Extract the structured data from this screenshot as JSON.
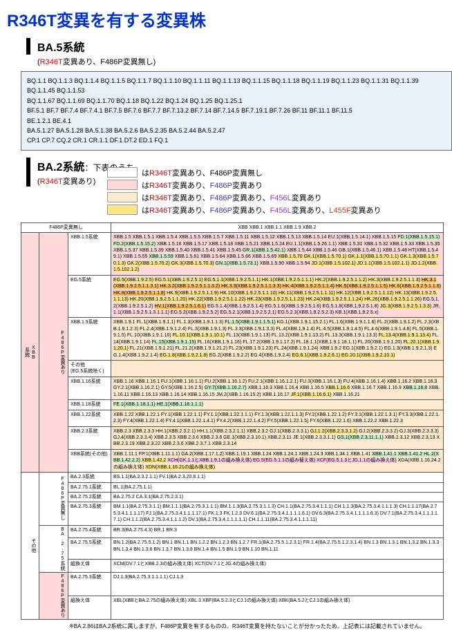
{
  "title": "R346T変異を有する変異株",
  "ba5": {
    "label": "BA.5系統",
    "sub": "(R346T変異あり、F486P変異無し)",
    "lines": [
      "BQ.1.1  BQ.1.1.3  BQ.1.1.4  BQ.1.1.5  BQ.1.1.7  BQ.1.1.10  BQ.1.1.11  BQ.1.1.13  BQ.1.1.15  BQ.1.1.18  BQ.1.1.19 BQ.1.1.23  BQ.1.1.31  BQ.1.1.39  BQ.1.1.45  BQ.1.1.53",
      "BQ.1.1.67  BQ.1.1.69  BQ.1.1.70  BQ.1.18  BQ.1.22  BQ.1.24  BQ.1.25  BQ.1.25.1",
      "BF.5.1  BF.7  BF.7.4  BF.7.4.1  BF.7.5  BF.7.6  BF.7.7  BF.7.13.2 BF.7.14  BF.7.14.5  BF.7.19.1  BF.7.26  BF.11  BF.11.1  BF.11.5",
      "BE.1.2.1  BE.4.1",
      "BA.5.1.27  BA.5.1.28  BA.5.1.38  BA.5.2.6  BA.5.2.35  BA.5.2.44  BA.5.2.47",
      "CP.1  CP.7  CQ.2  CR.1  CR.1.1  DF.1  DT.2  ED.1  FQ.1"
    ]
  },
  "ba2": {
    "label": "BA.2系統",
    "labelsuffix": "：下表のうち",
    "sub": "(R346T変異あり)",
    "legend": [
      {
        "color": "#ffffff",
        "text": "はR346T変異あり、F486P変異無し",
        "parts": [
          "は",
          "R346T",
          "変異あり、F486P変異無し"
        ]
      },
      {
        "color": "#ffd9d9",
        "text": "はR346T変異あり、F486P変異あり",
        "parts": [
          "は",
          "R346T",
          "変異あり、",
          "F486P",
          "変異あり"
        ]
      },
      {
        "color": "#ffead0",
        "text": "はR346T変異あり、F486P変異あり、F456L変異あり",
        "parts": [
          "は",
          "R346T",
          "変異あり、",
          "F486P",
          "変異あり、",
          "F456L",
          "変異あり"
        ]
      },
      {
        "color": "#ffe680",
        "text": "はR346T変異あり、F486P変異あり、F456L変異あり、L455F変異あり",
        "parts": [
          "は",
          "R346T",
          "変異あり、",
          "F486P",
          "変異あり、",
          "F456L",
          "変異あり、",
          "L455F",
          "変異あり"
        ]
      }
    ]
  },
  "tbl": {
    "headrow": [
      "F486P変異無し",
      "XBB  XBB.1  XBB.1.1  XBB.1.9  XBB.2"
    ],
    "rows": [
      {
        "grp": "XBB\n系統",
        "grpbg": "#ffd9d9",
        "sub": "F486P変異あり",
        "sub_bg": "#ffd9d9",
        "lab": "XBB.1.5系統",
        "content": "XBB.1.5 XBB.1.5.1 XBB.1.5.4 XBB.1.5.5 XBB.1.5.7 XBB.1.5.11 XBB.1.5.12 XBB.1.5.13 XBB.1.5.14 EU.1(XBB.1.5.14.1) XBB.1.5.15 <span class='green-hl'>FD.1(XBB.1.5.15.1) FD.2(XBB.1.5.15.2)</span> XBB.1.5.16 XBB.1.5.17 XBB.1.5.18 XBB.1.5.21 XBB.1.5.24 EU.1.1(XBB.1.5.26.1.1) XBB.1.5.31 XBB.1.5.32 XBB.1.5.33 XBB.1.5.35 XBB.1.5.37 XBB.1.5.39 XBB.1.5.40 XBB.1.5.41 XBB.1.5.45 <span class='green-hl'>GR.1(XBB.1.5.42.1)</span> XBB.1.5.44 XBB.1.5.46 GB.1(XBB.1.5.46.1) XBB.1.5.48 HT(XBB.1.5.49.1) XBB.1.5.55 <span class='green-hl'>XBB.1.5.59</span> XBB.1.5.61 XBB.1.5.64 XBB.1.5.66 XBB.1.5.69 <span class='yellow-hl'>XBB.1.5.70 GK.1(XBB.1.5.70.1) GK.1.1(XBB.1.5.70.1.1) GK.1.3(XBB.1.5.70.1.3) GK.2(XBB.1.5.70.2) GK.3(XBB.1.5.70.3)</span> <span class='green-hl'>GN.1(XBB.1.5.73.1)</span> XBB.1.5.90 XBB.1.5.94 <span class='yellow-hl'>JD.1(XBB.1.5.102.1) JD.1.1(XBB.1.5.102.1.1) JD.1.2(XBB.1.5.102.1.2)</span>"
      },
      {
        "lab": "EG.5系統",
        "content": "<span class='yellow-hl'>EG.5(XBB.1.9.2.5) EG.5.1(XBB.1.9.2.5.1) EG.5.1.1(XBB.1.9.2.5.1.1) HK.1(XBB.1.9.2.5.1.1.1) HK.2(XBB.1.9.2.5.1.1.2) HK.3(XBB.1.9.2.5.1.1.3)</span> <span class='orange-hl'>HK.3.1(XBB.1.9.2.5.1.1.3.1) HK.3.2(XBB.1.9.2.5.1.1.3.2) HK.3.3(XBB.1.9.2.5.1.1.3.3) HK.4(XBB.1.9.2.5.1.1.4) HK.5(XBB.1.9.2.5.1.1.5) HK.6(XBB.1.9.2.5.1.1.6) HK.8(XBB.1.9.2.5.1.1.8)</span> <span class='yellow-hl'>HK.9(XBB.1.9.2.5.1.1.9) HK.10(XBB.1.9.2.5.1.1.10) HK.11(XBB.1.9.2.5.1.1.11) HK.12(XBB.1.9.2.5.1.1.12) HK.13(XBB.1.9.2.5.1.1.13) HK.20(XBB.1.9.2.5.1.1.20) HK.22(XBB.1.9.2.5.1.1.22) HK.23(XBB.1.9.2.5.1.1.23) HK.24(XBB.1.9.2.5.1.1.24) HK.26(XBB.1.9.2.5.1.1.26)</span> EG.5.1.2(XBB.1.9.2.5.1.2) <span class='orange-hl'>HV.1(XBB.1.9.2.5.1.6.1)</span> EG.5.1.4(XBB.1.9.2.5.1.4) EG.5.1.6(XBB.1.9.2.5.1.6) EG.5.1.8(XBB.1.9.2.5.1.8) <span class='yellow-hl'>JG.3(XBB.1.9.2.5.1.3.3)</span> JR.1.1(XBB.1.9.2.5.1.3.1.1.1) EG.5.2(XBB.1.9.2.5.2) EG.5.2.1(XBB.1.9.2.5.2.1) EG.5.2.3(XBB.1.9.2.5.2.3) KB.1(XBB.1.9.2.5.x)"
      },
      {
        "lab": "XBB.1.9系統",
        "content": "XBB.1.9.1 FL.1(XBB.1.9.1.1) FL.1.3(XBB.1.9.1.1.3) <span class='green-hl'>FL.1.5(XBB.1.9.1.1.5.1)</span> KG.1(XBB.1.9.1.15.2.1) FL.1.6(XBB.1.9.1.1.6) FL.2(XBB.1.9.1.2) FL.2.3(XBB.1.9.1.2.3) FL.2.4(XBB.1.9.1.2.4) FL.3(XBB.1.9.1.3) FL.3.3(XBB.1.9.1.3.3) FL.4(XBB.1.9.1.4) FL.4.5(XBB.1.9.1.4.5) FL.4.6(XBB.1.9.1.4.6) FL.5(XBB.1.9.1.5) FL.10(XBB.1.9.1.10) <span class='yellow-hl'>FL.10.1(XBB.1.9.1.10.1)</span> FL.13(XBB.1.9.1.13) FL.13.2(XBB.1.9.1.13.2) FL.13.3(XBB.1.9.1.13.3) <span class='yellow-hl'>FL.13.4(XBB.1.9.1.13.4)</span> FL.14(XBB.1.9.1.14) <span class='green-hl'>FL.15(XBB.1.9.1.15)</span> FL.16(XBB.1.9.1.16) FL.17.2(XBB.1.9.1.17.2) FL.18.1.1(XBB.1.9.1.18.1.1) FL.20(XBB.1.9.1.20) <span class='yellow-hl'>FL.20.1(XBB.1.9.1.20.1)</span> FL.21(XBB.1.9.1.21) FL.21.2(XBB.1.9.1.21.2) FL.23(XBB.1.9.1.23) FL.24(XBB.1.9.1.24) XBB.1.9.2 EG.1(XBB.1.9.2.1) EG.1.3(XBB.1.9.2.1.3) EG.1.4(XBB.1.9.2.1.4) <span class='yellow-hl'>EG.1.8(XBB.1.9.2.1.8)</span> EG.2(XBB.1.9.2.2) EG.4(XBB.1.9.2.4) <span class='yellow-hl'>EG.6.1(XBB.1.9.2.6.1) EG.10.1(XBB.1.9.2.10.1)</span>"
      },
      {
        "lab": "その他\n(EG.5系統除く)",
        "content": ""
      },
      {
        "lab": "XBB.1.16系統",
        "content": "XBB.1.16 XBB.1.16.1 FU.1(XBB.1.16.1.1) FU.2(XBB.1.16.1.2) FU.2.1(XBB.1.16.1.2.1) FU.3(XBB.1.16.1.3) FU.4(XBB.1.16.1.4) XBB.1.16.2 XBB.1.16.3 GY.2.1(XBB.1.16.2.1) GY.5(XBB.1.16.2.5) <span class='green-hl'>GY.7(XBB.1.16.2.7)</span> XBB.1.16.3 XBB.1.16.4 XBB.1.16.5 <span class='yellow-hl'>XBB.1.16.6</span> XBB.1.16.7 XBB.1.16.9 <span class='green-hl'>XBB.1.16.8</span> XBB.1.16.11 XBB.1.16.13 XBB.1.16.14 XBB.1.16.15 JM.2(XBB.1.16.15.2) XBB.1.16.17 <span class='yellow-hl'>JF.1(XBB.1.16.6.1)</span> XBB.1.16.21"
      },
      {
        "lab": "XBB.1.18系統",
        "content": "<span class='green-hl'>FE.1(XBB.1.18.1.1) HE.1(XBB.1.18.1.1.1)</span>"
      },
      {
        "lab": "XBB.1.22系統",
        "content": "XBB.1.22 XBB.1.22.1 FY.1(XBB.1.22.1.1) FY.1.1(XBB.1.22.1.1.1) FY.1.3(XBB.1.22.1.1.3) FY.2(XBB.1.22.1.2) FY.3.1(XBB.1.22.1.3.1) FY.3.3(XBB.1.22.1.2.3) FY.4(XBB.1.22.1.4) FY.4.1(XBB.1.22.1.4.1) FY.4.2(XBB.1.22.1.4.2) FY.5(XBB.1.22.1.5) FY.6(XBB.1.22.1.6) XBB.1.22.2 XBB.1.22.3"
      },
      {
        "lab": "XBB.2.3系統",
        "content": "XBB.2.3 XBB.2.3.3 HH.1(XBB.2.3.2.1) HH.1.1(XBB.2.3.2.1.1) XBB.2.3.2 GJ.1(XBB.2.3.3.1) <span class='yellow-hl'>GJ.1.2(XBB.2.3.3.1.2)</span> GJ.2(XBB.2.3.3.2) GJ.3(XBB.2.3.3.3) GJ.4(XBB.2.3.3.4) XBB.2.3.5 XBB.2.3.6 XBB.2.3.8 GE.1(XBB.2.3.10.1) XBB.2.3.11 JE.1(XBB.2.3.3.1.1) <span class='green-hl'>GS.1(XBB.2.3.11.1.1)</span> XBB.2.3.12 XBB.2.3.13 XBB.2.3.19 XBB.2.3.22 XBB.2.3.6 XBB.2.3.7.1 XBB.2.3.14"
      },
      {
        "lab": "XBB系統(その他)",
        "content": "XBB.1.11.1 FP.1(XBB.1.11.1.1) GA.2(XBB.1.17.1.2) XBB.1.19.1 XBB.1.24 XBB.1.24.1 XBB.1.24.3 XBB.1.34.1 XBB.1.41 <span class='green-hl'>XBB.1.41.1 XBB.1.41.2 HL.2(XBB.1.42.2.2)</span> <span class='yellow-hl'>XBB.1.42.2</span> <span class='pink-hl'>XCH(GK.1.1とXBB.1.9.1の組み換え体) EG.5(EG.5.1.1の組み替え体) XCF(EG.5.1.3とJD.1.1の組み換え体)</span> XDA(XBB.1.16.24.2の組み換え体) <span class='yellow-hl'>XDN(XBB.1.16.21の組み換え体)</span>"
      },
      {
        "grp": "その他",
        "grpbg": "#ffffff",
        "sub": "F486P変異無し",
        "sub_bg": "#ffffff",
        "lab": "BA.2.3系統",
        "content": "BS.1.1(BA.2.3.2.1.1) FV.1(BA.2.3.20.8.1.1)"
      },
      {
        "lab": "BA.2.75.1系統",
        "content": "BL.1(BA.2.75.1.1)"
      },
      {
        "lab": "BA.2.75.2系統",
        "content": "BA.2.75.2  CA.3.1(BA.2.75.2.3.1)"
      },
      {
        "lab": "BA.2.75.3系統",
        "content": "BM.1.1(BA.2.75.3.1.1) BM.1.1.1(BA.2.75.3.1.1.1) BM.1.1.3(BA.2.75.3.1.1.3) CH.1.1(BA.2.75.3.4.1.1.1) CH.1.1.3(BA.2.75.3.4.1.1.1.3) CH.1.1.17(BA.2.75.3.4.1.1.1.17) FJ.1(BA.2.75.3.4.1.1.1.17.1) FK.1.3 FK.1.2.3 DV.6.1(BA.2.75.3.4.1.1.1.1.6.1) DV.6.3(BA.2.75.3.4.1.1.1.1.6.3) DV.7.1(BA.2.75.3.4.1.1.1.1.7.1) CH.1.1.2(BA.2.75.3.4.1.1.1.2) DV.1(BA.2.75.3.4.1.1.1.1.1) CH.1.1.11(BA.2.75.3.4.1.1.1.11)"
      },
      {
        "sub": "BA.2.75系統",
        "sub_bg": "#ffffff",
        "lab": "BA.2.75.4系統",
        "content": "BR.3(BA.2.75.4.3) BR.1  BR.3"
      },
      {
        "lab": "BA.2.75.5系統",
        "content": "BN.1.2(BA.2.75.5.1.2) BN.1  BN.1.1 BN.1.2.2 BN.1.2.3 BN.1.2.7 FR.1(BA.2.75.5.1.2.3.1) FR.1.4(BA.2.75.5.1.2.3.1.4) BN.1.3 BN.1.3.1 BN.1.3.2 BN.1.3.3 BN.1.3.4 BN.1.3.6  BN.1.3.7 BN.1.3.8 BN.1.4 BN.1.5 BN.1.9 BN.1.10  BN.1.11"
      },
      {
        "lab": "組換え体",
        "content": "XCM(DV.7.1とXBB.2.3の組み換え体)  XCT(DV.7.1とJG.4の組み換え体)"
      },
      {
        "sub": "F486P変異あり",
        "sub_bg": "#ffd9d9",
        "lab": "BA.2.75.3系統",
        "content": "DJ.1.3(BA.2.75.3.1.1.1.1) CJ.1.3"
      },
      {
        "lab": "組換え体",
        "content": "XBL(XBBとBA.2.75の組み換え体) XBL.3  XBF(BA.5.2.3とCJ.1の組み換え体) XBK(BA.5.2とCJ.1の組み換え体)"
      }
    ],
    "footnote": "※BA.2.86はBA.2系統に属しますが、F486P変異を有するものの、R346T変異を持たないことが分かったため、上記表には記載されていません。"
  },
  "colors": {
    "titleBlue": "#0033cc",
    "red": "#cc0000",
    "ba5Box": "#eaf0f8",
    "pink": "#ffd9d9",
    "peach": "#ffead0",
    "yellow": "#ffe680",
    "orange": "#ffc04d",
    "green": "#c8f0c8"
  }
}
